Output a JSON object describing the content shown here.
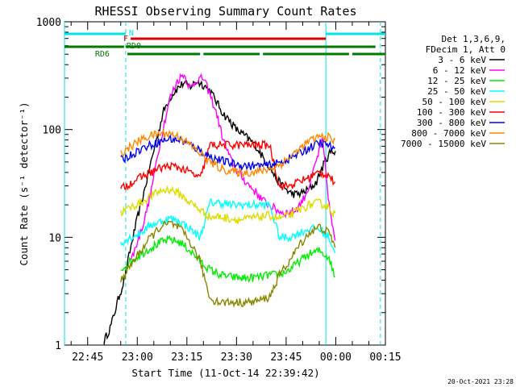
{
  "chart_data": {
    "type": "line",
    "title": "RHESSI Observing Summary Count Rates",
    "xlabel": "Start Time (11-Oct-14 22:39:42)",
    "ylabel": "Count Rate (s⁻¹ detector⁻¹)",
    "yscale": "log",
    "ylim": [
      1,
      1000
    ],
    "xlim_minutes": [
      -7,
      90
    ],
    "grid": false,
    "legend_position": "right",
    "x_ticks": [
      {
        "label": "22:45",
        "m": 0
      },
      {
        "label": "23:00",
        "m": 15
      },
      {
        "label": "23:15",
        "m": 30
      },
      {
        "label": "23:30",
        "m": 45
      },
      {
        "label": "23:45",
        "m": 60
      },
      {
        "label": "00:00",
        "m": 75
      },
      {
        "label": "00:15",
        "m": 90
      }
    ],
    "y_ticks": [
      {
        "label": "1",
        "v": 1
      },
      {
        "label": "10",
        "v": 10
      },
      {
        "label": "100",
        "v": 100
      },
      {
        "label": "1000",
        "v": 1000
      }
    ],
    "legend_header": [
      "Det 1,3,6,9,",
      "FDecim 1, Att 0"
    ],
    "timestamp": "20-Oct-2021 23:28",
    "flags": {
      "night_label": "N",
      "flare_label": "F",
      "rd0_label": "RD0",
      "rd6_label": "RD6",
      "night_color": "#00e5e5",
      "flare_color": "#dd0000",
      "rd_color": "#007a00",
      "night": [
        [
          -7,
          11.5
        ],
        [
          72,
          90
        ]
      ],
      "flare": [
        [
          13,
          72
        ]
      ],
      "rd0": [
        [
          -7,
          11
        ],
        [
          11.5,
          87
        ]
      ],
      "rd6": [
        [
          12,
          34
        ],
        [
          35,
          52
        ],
        [
          53,
          79
        ],
        [
          80,
          90
        ]
      ]
    },
    "vlines": [
      {
        "m": -7,
        "color": "#00e5e5",
        "style": "solid"
      },
      {
        "m": 11.5,
        "color": "#00e5e5",
        "style": "dashed"
      },
      {
        "m": 72,
        "color": "#00e5e5",
        "style": "solid"
      },
      {
        "m": 88.5,
        "color": "#00e5e5",
        "style": "dashed"
      }
    ],
    "series": [
      {
        "name": "3 - 6 keV",
        "color": "#000000",
        "x": [
          5,
          7,
          9,
          11,
          13,
          15,
          17,
          19,
          21,
          23,
          25,
          27,
          29,
          31,
          33,
          35,
          37,
          39,
          41,
          43,
          45,
          47,
          49,
          51,
          53,
          55,
          57,
          59,
          61,
          63,
          65,
          67,
          69,
          71,
          73,
          75
        ],
        "y": [
          1.1,
          1.5,
          2.5,
          4,
          8,
          15,
          26,
          48,
          85,
          150,
          200,
          240,
          270,
          250,
          280,
          260,
          230,
          180,
          140,
          120,
          100,
          90,
          80,
          70,
          55,
          45,
          35,
          30,
          26,
          25,
          26,
          28,
          32,
          45,
          60,
          65
        ]
      },
      {
        "name": "6 - 12 keV",
        "color": "#ff00ff",
        "x": [
          13,
          15,
          17,
          19,
          21,
          23,
          25,
          27,
          29,
          31,
          33,
          35,
          37,
          39,
          41,
          43,
          45,
          47,
          49,
          51,
          53,
          55,
          57,
          59,
          61,
          63,
          65,
          67,
          69,
          71,
          73,
          75
        ],
        "y": [
          6,
          9,
          14,
          25,
          55,
          110,
          200,
          280,
          330,
          240,
          290,
          300,
          210,
          140,
          80,
          55,
          42,
          35,
          30,
          26,
          22,
          20,
          18,
          17,
          17,
          18,
          22,
          30,
          50,
          80,
          20,
          8
        ]
      },
      {
        "name": "12 - 25 keV",
        "color": "#00ee00",
        "x": [
          10,
          13,
          16,
          19,
          22,
          25,
          28,
          31,
          34,
          37,
          40,
          43,
          46,
          49,
          52,
          55,
          58,
          61,
          64,
          67,
          70,
          73,
          75
        ],
        "y": [
          5,
          6,
          7,
          8,
          9,
          9.5,
          9,
          7.5,
          6,
          5,
          4.5,
          4.3,
          4.2,
          4.2,
          4.3,
          4.5,
          4.5,
          5,
          6,
          7,
          7.5,
          6.5,
          4
        ]
      },
      {
        "name": "25 - 50 keV",
        "color": "#00ffff",
        "x": [
          10,
          13,
          16,
          19,
          22,
          25,
          28,
          31,
          34,
          37,
          40,
          43,
          46,
          49,
          52,
          55,
          58,
          61,
          64,
          67,
          70,
          73,
          75
        ],
        "y": [
          9,
          10,
          11,
          13,
          14,
          15,
          14,
          12,
          10,
          21,
          21,
          20,
          20,
          20,
          20,
          20,
          10,
          10,
          11,
          12,
          12,
          10,
          7
        ]
      },
      {
        "name": "50 - 100 keV",
        "color": "#dddd00",
        "x": [
          10,
          13,
          16,
          19,
          22,
          25,
          28,
          31,
          34,
          37,
          40,
          43,
          46,
          49,
          52,
          55,
          58,
          61,
          64,
          67,
          70,
          73,
          75
        ],
        "y": [
          17,
          19,
          21,
          24,
          27,
          28,
          25,
          21,
          18,
          15.5,
          15.5,
          15,
          14.5,
          15,
          15.5,
          16,
          15,
          16,
          18,
          20,
          21,
          19,
          16
        ]
      },
      {
        "name": "100 - 300 keV",
        "color": "#ff0000",
        "x": [
          10,
          13,
          16,
          19,
          22,
          25,
          28,
          31,
          34,
          37,
          40,
          43,
          46,
          49,
          52,
          55,
          58,
          61,
          64,
          67,
          70,
          73,
          75
        ],
        "y": [
          28,
          32,
          36,
          40,
          44,
          46,
          44,
          40,
          35,
          72,
          72,
          72,
          72,
          72,
          72,
          72,
          30,
          30,
          33,
          36,
          40,
          38,
          30
        ]
      },
      {
        "name": "300 - 800 keV",
        "color": "#0000ee",
        "x": [
          10,
          13,
          16,
          19,
          22,
          25,
          28,
          31,
          34,
          37,
          40,
          43,
          46,
          49,
          52,
          55,
          58,
          61,
          64,
          67,
          70,
          73,
          75
        ],
        "y": [
          52,
          58,
          66,
          72,
          78,
          82,
          80,
          72,
          64,
          56,
          52,
          49,
          47,
          46,
          46,
          47,
          49,
          54,
          60,
          68,
          75,
          72,
          62
        ]
      },
      {
        "name": "800 - 7000 keV",
        "color": "#ff8800",
        "x": [
          10,
          13,
          16,
          19,
          22,
          25,
          28,
          31,
          34,
          37,
          40,
          43,
          46,
          49,
          52,
          55,
          58,
          61,
          64,
          67,
          70,
          73,
          75
        ],
        "y": [
          60,
          70,
          80,
          88,
          92,
          92,
          85,
          72,
          60,
          50,
          44,
          41,
          40,
          40,
          41,
          43,
          47,
          55,
          66,
          78,
          86,
          85,
          75
        ]
      },
      {
        "name": "7000 - 15000 keV",
        "color": "#888800",
        "x": [
          10,
          13,
          16,
          19,
          22,
          25,
          28,
          31,
          34,
          37,
          40,
          43,
          46,
          49,
          52,
          55,
          58,
          61,
          64,
          67,
          70,
          73,
          75
        ],
        "y": [
          4,
          5.5,
          7.5,
          10,
          12.5,
          13.5,
          12,
          9,
          6,
          2.7,
          2.5,
          2.5,
          2.5,
          2.5,
          2.6,
          2.8,
          4.5,
          6,
          8.5,
          11,
          12.5,
          11,
          8
        ]
      }
    ]
  }
}
